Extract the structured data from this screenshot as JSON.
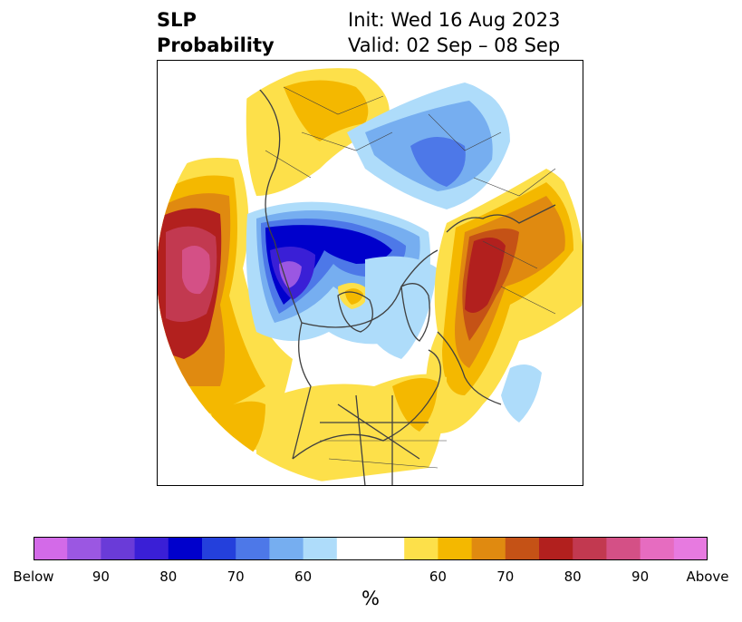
{
  "title": {
    "left": [
      "SLP",
      "Probability"
    ],
    "right": [
      "Init: Wed 16 Aug 2023",
      "Valid: 02 Sep – 08 Sep"
    ]
  },
  "colorbar": {
    "colors": [
      "#d36ae8",
      "#9b57e2",
      "#6a3bd8",
      "#3a1fd6",
      "#0000cc",
      "#2440dc",
      "#4d78e8",
      "#76aef0",
      "#aedcfa",
      "#ffffff",
      "#ffffff",
      "#fde04a",
      "#f4b800",
      "#e08a10",
      "#c55216",
      "#b2201e",
      "#c23950",
      "#d45086",
      "#e66cc0",
      "#e77ae0"
    ],
    "tick_labels": [
      "Below",
      "90",
      "80",
      "70",
      "60",
      "60",
      "70",
      "80",
      "90",
      "Above"
    ],
    "units": "%"
  },
  "legend_colors": {
    "below_strong": "#7a3fe0",
    "below": "#2a2fd8",
    "below_weak": "#aedcfa",
    "above_weak": "#fde04a",
    "above": "#e08a10",
    "above_strong": "#b2201e",
    "above_max": "#d45086",
    "coastline": "#404040"
  }
}
